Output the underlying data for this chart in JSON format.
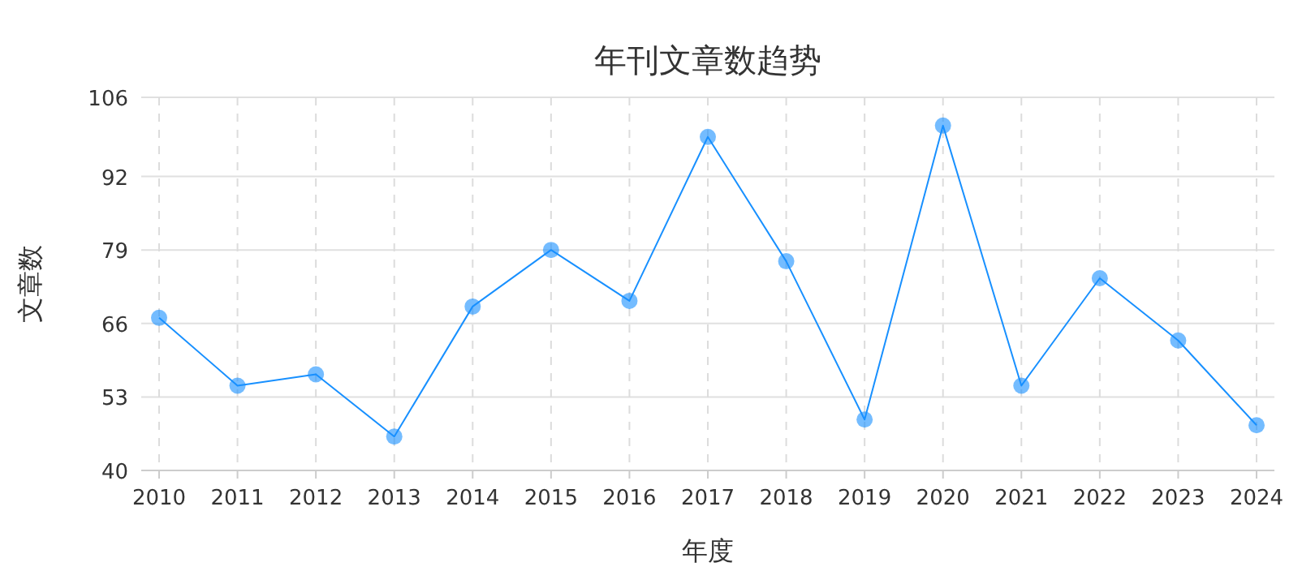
{
  "chart_data": {
    "type": "line",
    "title": "年刊文章数趋势",
    "xlabel": "年度",
    "ylabel": "文章数",
    "categories": [
      "2010",
      "2011",
      "2012",
      "2013",
      "2014",
      "2015",
      "2016",
      "2017",
      "2018",
      "2019",
      "2020",
      "2021",
      "2022",
      "2023",
      "2024"
    ],
    "series": [
      {
        "color": "#1890ff",
        "values": [
          67,
          55,
          57,
          46,
          69,
          79,
          70,
          99,
          77,
          49,
          101,
          55,
          74,
          63,
          48
        ]
      }
    ],
    "ylim": [
      40,
      106
    ],
    "yticks": [
      40,
      53,
      66,
      79,
      92,
      106
    ],
    "grid": true,
    "marker": "circle"
  }
}
